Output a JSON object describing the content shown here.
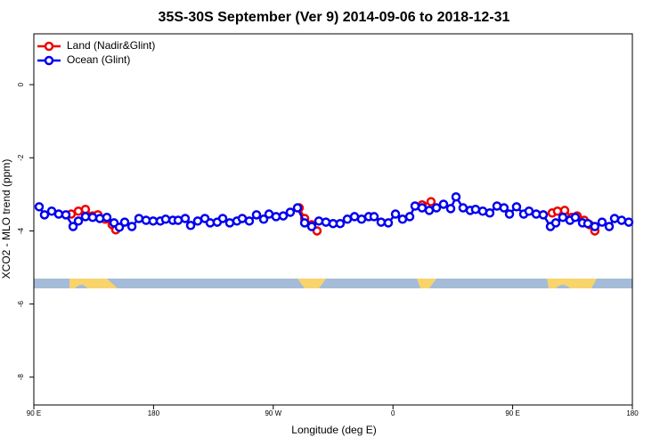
{
  "chart_data": {
    "type": "line",
    "title": "35S-30S September (Ver 9)   2014-09-06 to 2018-12-31",
    "x_label": "Longitude (deg E)",
    "y_label": "XCO2 - MLO trend (ppm)",
    "xlim": [
      90,
      540
    ],
    "xticks": [
      {
        "value": 90,
        "label": "90 E"
      },
      180,
      {
        "value": 270,
        "label": "90 W"
      },
      {
        "value": 360,
        "label": "0"
      },
      {
        "value": 450,
        "label": "90 E"
      },
      {
        "value": 540,
        "label": "180"
      }
    ],
    "ylim": [
      -8.76,
      1.39
    ],
    "yticks": [
      0,
      -2,
      -4,
      -6,
      -8
    ],
    "legend": "top-left",
    "series": [
      {
        "name": "Land (Nadir&Glint)",
        "color": "#ee0000",
        "x": [
          118.1,
          123.5,
          128.8,
          134.2,
          138.2,
          143.6,
          148.9,
          151.6,
          null,
          289.5,
          293.6,
          298.9,
          302.9,
          null,
          381.9,
          388.6,
          null,
          479.7,
          483.7,
          489.1,
          494.4,
          498.5,
          503.8,
          507.8,
          511.8
        ],
        "values": [
          -3.54,
          -3.46,
          -3.41,
          -3.59,
          -3.56,
          -3.68,
          -3.83,
          -3.97,
          null,
          -3.37,
          -3.66,
          -3.83,
          -4.0,
          null,
          -3.29,
          -3.2,
          null,
          -3.51,
          -3.46,
          -3.44,
          -3.63,
          -3.59,
          -3.71,
          -3.83,
          -4.0
        ]
      },
      {
        "name": "Ocean (Glint)",
        "color": "#0000ee",
        "x": [
          94.0,
          98.0,
          103.4,
          108.7,
          114.1,
          119.5,
          123.5,
          128.8,
          134.2,
          139.6,
          144.9,
          150.3,
          154.3,
          158.3,
          163.7,
          169.0,
          174.4,
          179.7,
          185.1,
          189.1,
          194.5,
          198.5,
          203.8,
          207.9,
          213.2,
          218.6,
          222.6,
          227.9,
          232.0,
          237.3,
          242.7,
          246.7,
          252.0,
          257.4,
          262.8,
          266.8,
          272.1,
          277.5,
          282.8,
          288.2,
          293.6,
          298.9,
          304.3,
          309.6,
          315.0,
          320.3,
          325.7,
          331.1,
          336.4,
          341.8,
          345.8,
          351.1,
          356.5,
          361.9,
          367.2,
          372.6,
          376.6,
          381.9,
          387.3,
          392.7,
          398.0,
          403.4,
          407.4,
          412.7,
          418.1,
          422.1,
          427.5,
          432.8,
          438.2,
          443.5,
          447.6,
          452.9,
          458.3,
          462.3,
          467.7,
          473.0,
          478.4,
          482.4,
          487.7,
          493.1,
          497.1,
          502.5,
          506.5,
          511.8,
          517.2,
          522.6,
          526.6,
          531.9,
          537.3
        ],
        "values": [
          -3.34,
          -3.56,
          -3.46,
          -3.54,
          -3.56,
          -3.88,
          -3.73,
          -3.61,
          -3.63,
          -3.66,
          -3.63,
          -3.78,
          -3.9,
          -3.76,
          -3.88,
          -3.66,
          -3.71,
          -3.73,
          -3.73,
          -3.68,
          -3.71,
          -3.71,
          -3.66,
          -3.85,
          -3.73,
          -3.66,
          -3.78,
          -3.76,
          -3.66,
          -3.78,
          -3.73,
          -3.66,
          -3.73,
          -3.56,
          -3.68,
          -3.54,
          -3.61,
          -3.59,
          -3.49,
          -3.37,
          -3.78,
          -3.88,
          -3.73,
          -3.76,
          -3.8,
          -3.8,
          -3.68,
          -3.61,
          -3.68,
          -3.61,
          -3.61,
          -3.76,
          -3.78,
          -3.54,
          -3.68,
          -3.61,
          -3.32,
          -3.37,
          -3.44,
          -3.37,
          -3.27,
          -3.39,
          -3.07,
          -3.37,
          -3.44,
          -3.41,
          -3.46,
          -3.51,
          -3.32,
          -3.37,
          -3.54,
          -3.34,
          -3.54,
          -3.46,
          -3.54,
          -3.56,
          -3.88,
          -3.78,
          -3.63,
          -3.71,
          -3.63,
          -3.78,
          -3.8,
          -3.88,
          -3.76,
          -3.88,
          -3.66,
          -3.71,
          -3.76
        ]
      }
    ]
  }
}
